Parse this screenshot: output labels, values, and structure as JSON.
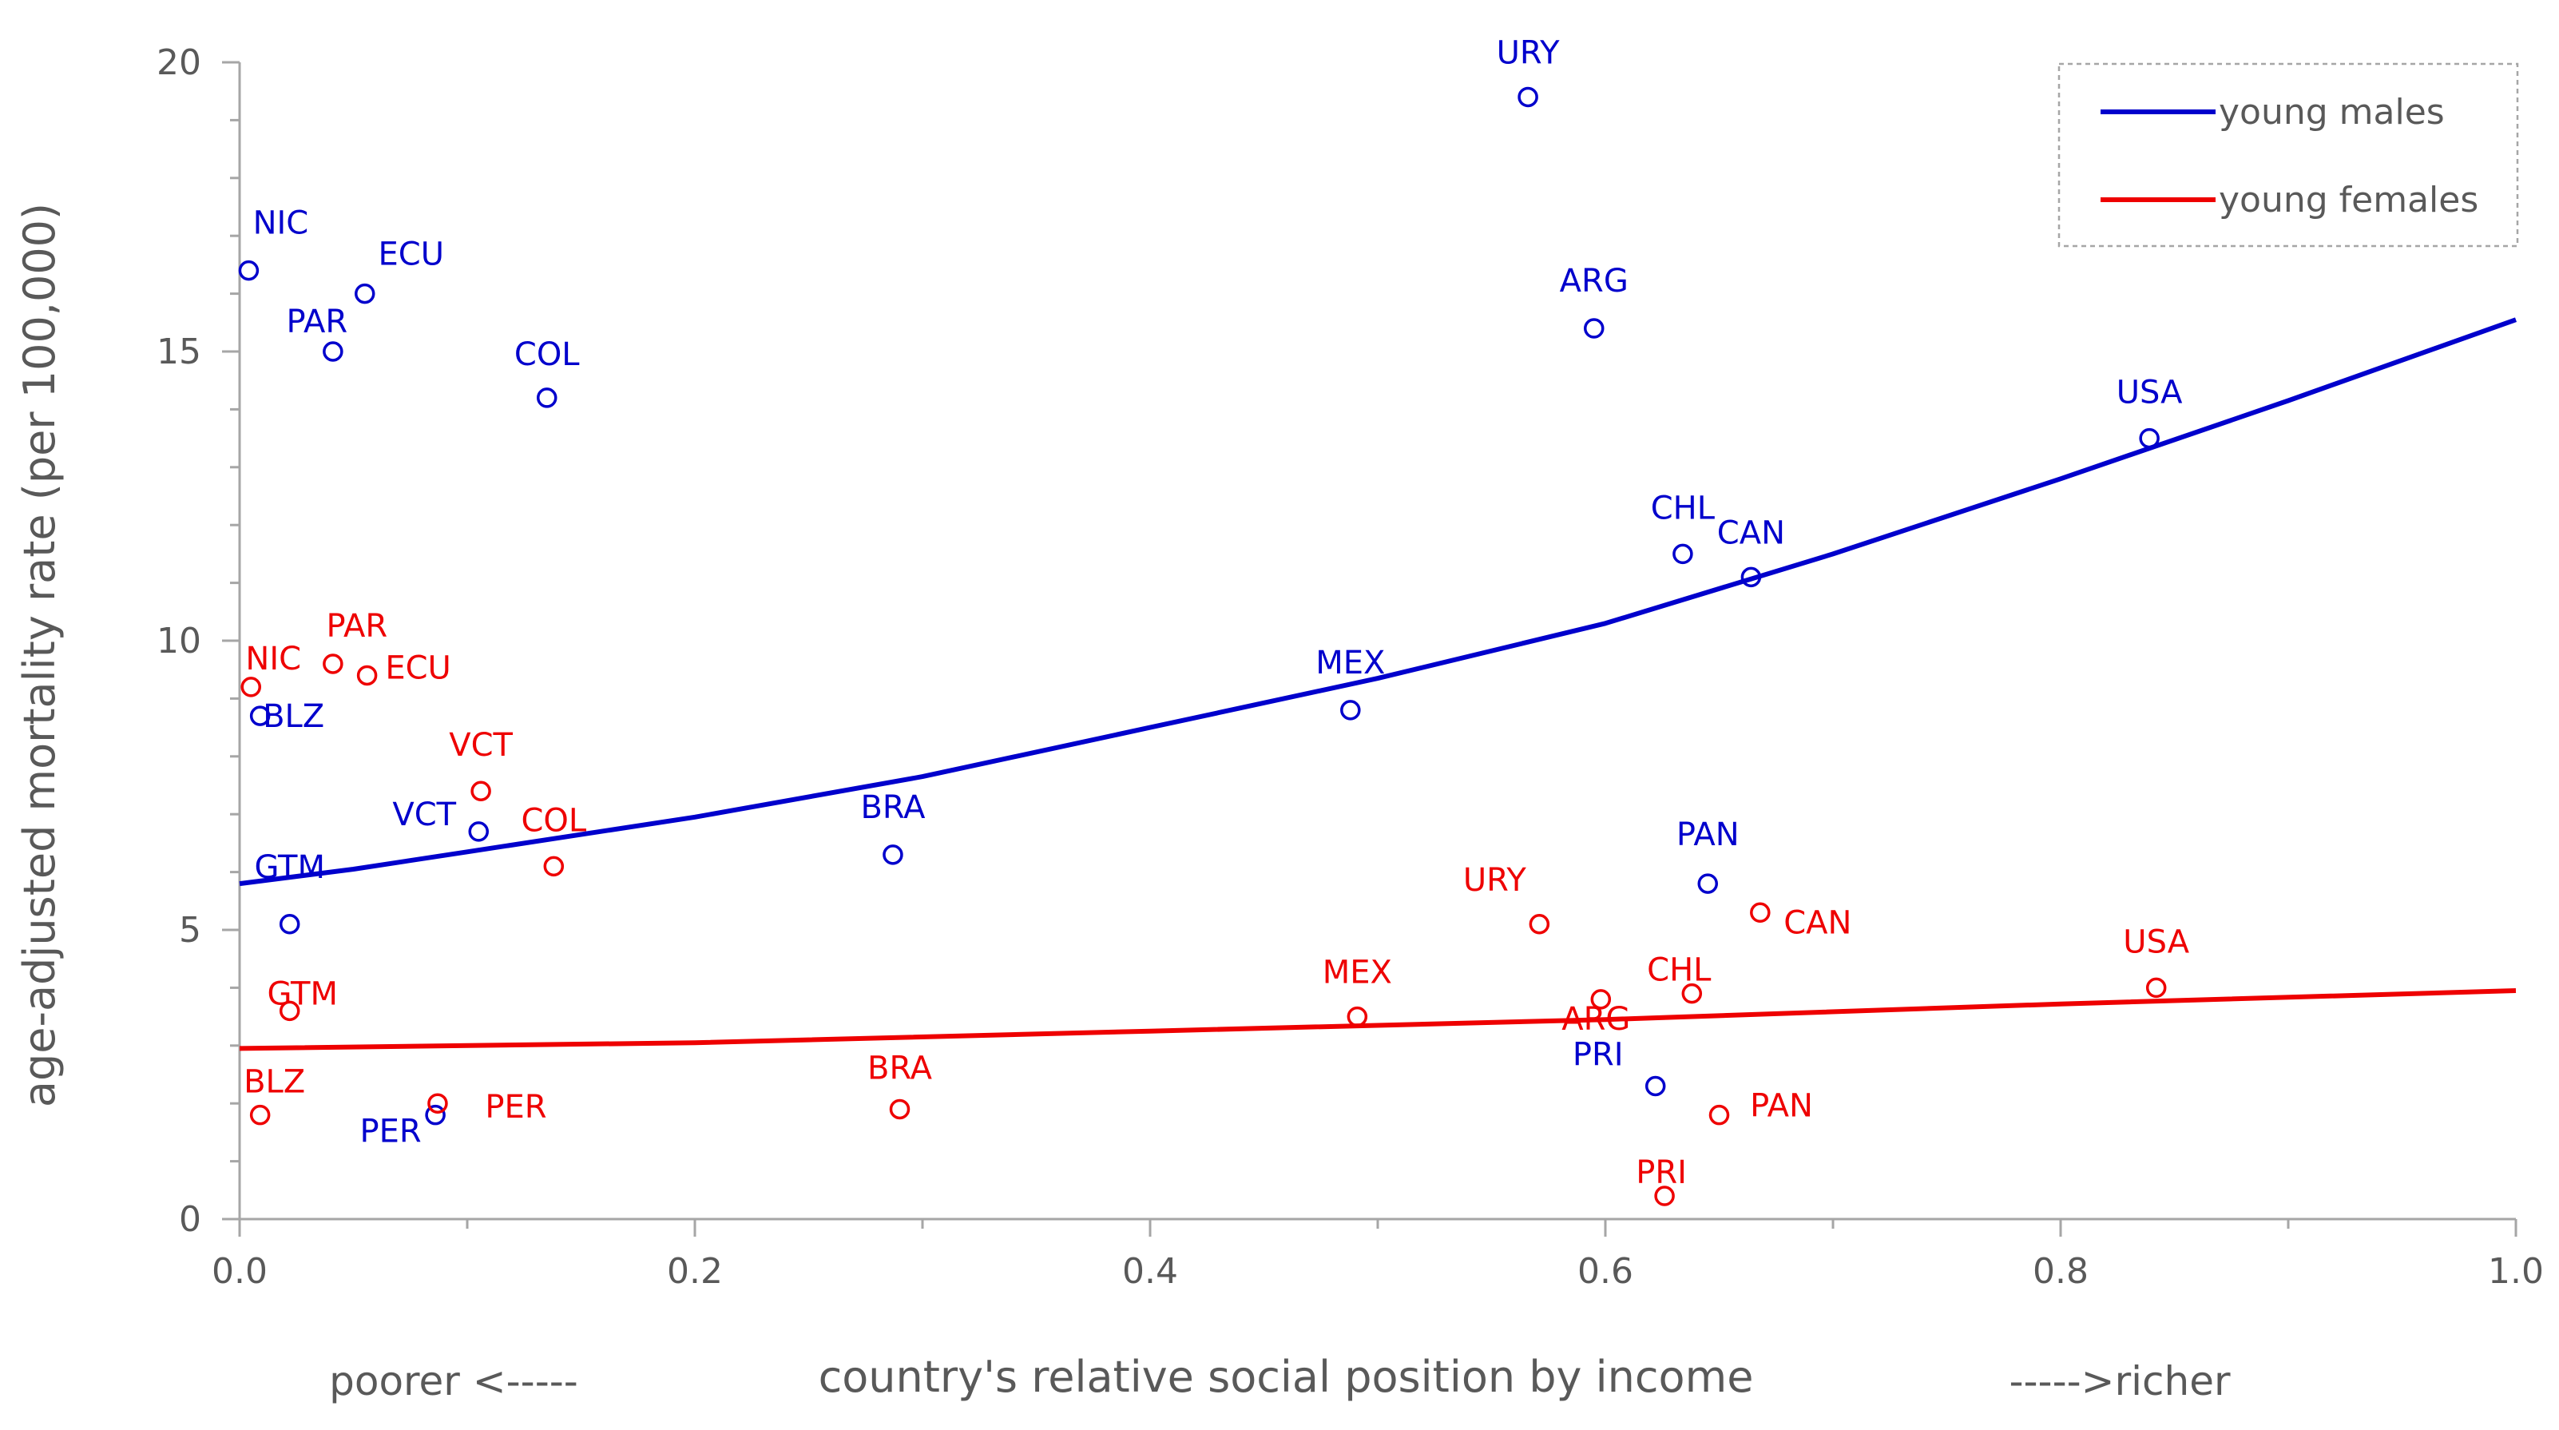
{
  "chart_data": {
    "type": "scatter",
    "title": "",
    "xlabel": "country's relative social position by income",
    "ylabel": "age-adjusted mortality rate (per 100,000)",
    "x_note_left": "poorer <-----",
    "x_note_right": "----->richer",
    "xlim": [
      0,
      1
    ],
    "ylim": [
      0,
      20
    ],
    "xticks": [
      0,
      0.2,
      0.4,
      0.6,
      0.8,
      1
    ],
    "xtick_labels": [
      "0.0",
      "0.2",
      "0.4",
      "0.6",
      "0.8",
      "1.0"
    ],
    "yticks": [
      0,
      5,
      10,
      15,
      20
    ],
    "ytick_labels": [
      "0",
      "5",
      "10",
      "15",
      "20"
    ],
    "legend_position": "top-right",
    "series": [
      {
        "name": "young males",
        "color": "#0000cc",
        "points": [
          {
            "label": "NIC",
            "x": 0.004,
            "y": 16.4
          },
          {
            "label": "ECU",
            "x": 0.055,
            "y": 16.0
          },
          {
            "label": "PAR",
            "x": 0.041,
            "y": 15.0
          },
          {
            "label": "COL",
            "x": 0.135,
            "y": 14.2
          },
          {
            "label": "BLZ",
            "x": 0.009,
            "y": 8.7
          },
          {
            "label": "GTM",
            "x": 0.022,
            "y": 5.1
          },
          {
            "label": "VCT",
            "x": 0.105,
            "y": 6.7
          },
          {
            "label": "PER",
            "x": 0.086,
            "y": 1.8
          },
          {
            "label": "BRA",
            "x": 0.287,
            "y": 6.3
          },
          {
            "label": "MEX",
            "x": 0.488,
            "y": 8.8
          },
          {
            "label": "URY",
            "x": 0.566,
            "y": 19.4
          },
          {
            "label": "ARG",
            "x": 0.595,
            "y": 15.4
          },
          {
            "label": "CHL",
            "x": 0.634,
            "y": 11.5
          },
          {
            "label": "CAN",
            "x": 0.664,
            "y": 11.1
          },
          {
            "label": "PAN",
            "x": 0.645,
            "y": 5.8
          },
          {
            "label": "PRI",
            "x": 0.622,
            "y": 2.3
          },
          {
            "label": "USA",
            "x": 0.839,
            "y": 13.5
          }
        ],
        "trend": {
          "x": [
            0,
            0.05,
            0.1,
            0.2,
            0.3,
            0.4,
            0.5,
            0.6,
            0.7,
            0.8,
            0.9,
            1.0
          ],
          "y": [
            5.8,
            6.05,
            6.35,
            6.95,
            7.65,
            8.5,
            9.35,
            10.3,
            11.5,
            12.8,
            14.15,
            15.55
          ]
        }
      },
      {
        "name": "young females",
        "color": "#ee0000",
        "points": [
          {
            "label": "NIC",
            "x": 0.005,
            "y": 9.2
          },
          {
            "label": "PAR",
            "x": 0.041,
            "y": 9.6
          },
          {
            "label": "ECU",
            "x": 0.056,
            "y": 9.4
          },
          {
            "label": "VCT",
            "x": 0.106,
            "y": 7.4
          },
          {
            "label": "COL",
            "x": 0.138,
            "y": 6.1
          },
          {
            "label": "GTM",
            "x": 0.022,
            "y": 3.6
          },
          {
            "label": "BLZ",
            "x": 0.009,
            "y": 1.8
          },
          {
            "label": "PER",
            "x": 0.087,
            "y": 2.0
          },
          {
            "label": "BRA",
            "x": 0.29,
            "y": 1.9
          },
          {
            "label": "MEX",
            "x": 0.491,
            "y": 3.5
          },
          {
            "label": "URY",
            "x": 0.571,
            "y": 5.1
          },
          {
            "label": "ARG",
            "x": 0.598,
            "y": 3.8
          },
          {
            "label": "CHL",
            "x": 0.638,
            "y": 3.9
          },
          {
            "label": "CAN",
            "x": 0.668,
            "y": 5.3
          },
          {
            "label": "PAN",
            "x": 0.65,
            "y": 1.8
          },
          {
            "label": "PRI",
            "x": 0.626,
            "y": 0.4
          },
          {
            "label": "USA",
            "x": 0.842,
            "y": 4.0
          }
        ],
        "trend": {
          "x": [
            0,
            0.2,
            0.4,
            0.6,
            0.8,
            1.0
          ],
          "y": [
            2.95,
            3.05,
            3.25,
            3.45,
            3.72,
            3.95
          ]
        }
      }
    ]
  }
}
